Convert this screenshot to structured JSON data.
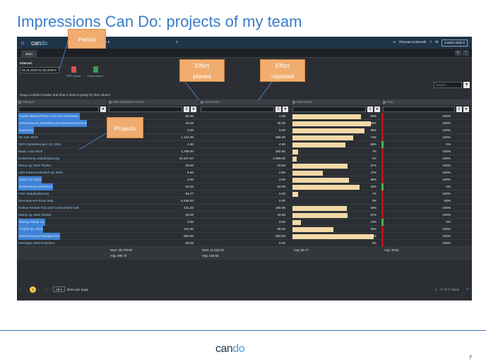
{
  "slide": {
    "title": "Impressions Can Do: projects of my team",
    "page_number": "7",
    "footer_logo": {
      "part1": "can",
      "part2": "do"
    }
  },
  "app": {
    "logo": {
      "part1": "can",
      "part2": "do"
    },
    "menu": [
      "My Apps ▾",
      "Other Apps ▾"
    ],
    "user": "Thomas Schiereth",
    "theme": "CanDo Dark",
    "tab": "Start",
    "interval_label": "Interval:",
    "interval_value": "01.01.2023-31.03.2023",
    "exports": [
      "PDF export",
      "Excel export"
    ],
    "search_placeholder": "Search...",
    "group_hint": "Drag a column header and drop it here to group by that column",
    "columns": [
      "PROJECT",
      "PRE ASSIGNED EFFORT",
      "REPORTED",
      "PROGRESS",
      "RISK"
    ],
    "rows": [
      {
        "project": "CanDo MasterPlaner and 2nd Generation",
        "effort": "82.50",
        "reported": "1.00",
        "progress": 84,
        "risk": "100%",
        "risk_color": "#b3131b",
        "hl": true
      },
      {
        "project": "Zeiterfassung Zeiterfassung Weiterentwicklung",
        "effort": "45.00",
        "reported": "45.00",
        "progress": 96,
        "risk": "100%",
        "risk_color": "#b3131b",
        "hl": true
      },
      {
        "project": "Reporting",
        "effort": "0.00",
        "reported": "0.00",
        "progress": 88,
        "risk": "100%",
        "risk_color": "#b3131b",
        "hl": true
      },
      {
        "project": "SD HJ1 2023",
        "effort": "1,122.00",
        "reported": "366.00",
        "progress": 74,
        "risk": "100%",
        "risk_color": "#b3131b",
        "hl": false
      },
      {
        "project": "SEO-Optimierungen Q1 2023",
        "effort": "4.00",
        "reported": "4.00",
        "progress": 65,
        "risk": "0%",
        "risk_color": "#4caf50",
        "hl": false
      },
      {
        "project": "Basic Load 2023",
        "effort": "1,789.00",
        "reported": "382.50",
        "progress": 7,
        "risk": "100%",
        "risk_color": "#b3131b",
        "hl": false
      },
      {
        "project": "Entwicklung Urlaubsplanung",
        "effort": "10,107.87",
        "reported": "3,969.00",
        "progress": 5,
        "risk": "100%",
        "risk_color": "#b3131b",
        "hl": false
      },
      {
        "project": "Ramp Up Suite finalize",
        "effort": "20.00",
        "reported": "18.50",
        "progress": 67,
        "risk": "100%",
        "risk_color": "#b3131b",
        "hl": false
      },
      {
        "project": "ABS-Partnernetzwerk Q1 2023",
        "effort": "5.50",
        "reported": "2.50",
        "progress": 37,
        "risk": "100%",
        "risk_color": "#b3131b",
        "hl": false
      },
      {
        "project": "Sprint Q1 2023",
        "effort": "3.00",
        "reported": "3.00",
        "progress": 69,
        "risk": "100%",
        "risk_color": "#b3131b",
        "hl": true
      },
      {
        "project": "Entwicklung WebClient",
        "effort": "64.00",
        "reported": "64.00",
        "progress": 82,
        "risk": "0%",
        "risk_color": "#4caf50",
        "hl": true
      },
      {
        "project": "CSS Urlaubsplanung",
        "effort": "54.27",
        "reported": "0.00",
        "progress": 7,
        "risk": "100%",
        "risk_color": "#b3131b",
        "hl": false
      },
      {
        "project": "Development Road Map",
        "effort": "5,448.00",
        "reported": "0.00",
        "progress": 0,
        "risk": "90%",
        "risk_color": "#b3131b",
        "hl": false
      },
      {
        "project": "Rollout Restart Tool and CustomField Edtr",
        "effort": "241.33",
        "reported": "180.00",
        "progress": 66,
        "risk": "100%",
        "risk_color": "#b3131b",
        "hl": false
      },
      {
        "project": "Ramp Up Suite finalize",
        "effort": "20.00",
        "reported": "18.50",
        "progress": 67,
        "risk": "100%",
        "risk_color": "#b3131b",
        "hl": false
      },
      {
        "project": "Startup Ramp Up",
        "effort": "0.00",
        "reported": "0.00",
        "progress": 10,
        "risk": "0%",
        "risk_color": "#4caf50",
        "hl": true
      },
      {
        "project": "Projekt Q1 2023",
        "effort": "224.00",
        "reported": "96.00",
        "progress": 50,
        "risk": "100%",
        "risk_color": "#b3131b",
        "hl": true
      },
      {
        "project": "Zeiterfassungsmanagement",
        "effort": "963.50",
        "reported": "963.50",
        "progress": 99,
        "risk": "100%",
        "risk_color": "#b3131b",
        "hl": true
      },
      {
        "project": "Feiertage 2023 Erweitern",
        "effort": "80.00",
        "reported": "0.00",
        "progress": 0,
        "risk": "100%",
        "risk_color": "#b3131b",
        "hl": false
      }
    ],
    "summary": {
      "effort_sum": "Sum: 29,778.50",
      "effort_avg": "Avg: 385.73",
      "reported_sum": "Sum: 11,215.75",
      "reported_avg": "Avg: 145.63",
      "progress_avg": "Avg: 55.77",
      "risk_avg": "Avg: 76.61"
    },
    "pager": {
      "current": "1",
      "page_size": "All",
      "items_label": "items per page",
      "range": "1 - 77 of 77 items"
    }
  },
  "callouts": {
    "period": "Period",
    "effort_planed": "Effort\nplaned",
    "effort_reported": "Effort\nreported",
    "projects": "Projects"
  },
  "colors": {
    "accent": "#3a7dc9",
    "callout": "#f0ad6f",
    "bar": "#f2d9a6",
    "risk_red": "#b3131b",
    "risk_green": "#4caf50"
  }
}
